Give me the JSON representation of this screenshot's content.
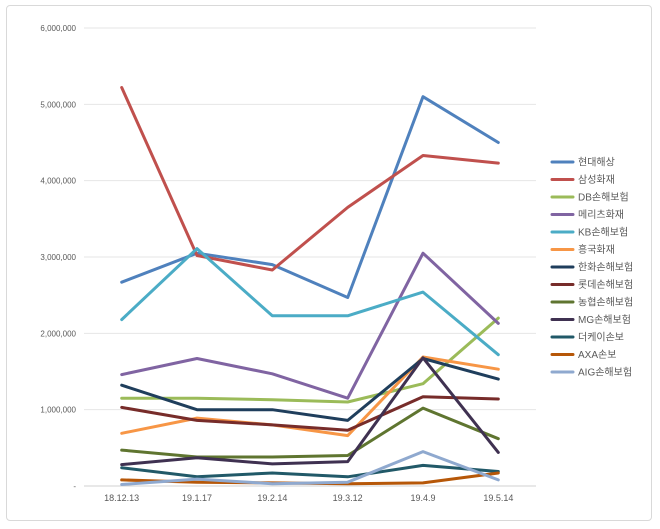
{
  "chart_data": {
    "type": "line",
    "title": "",
    "xlabel": "",
    "ylabel": "",
    "ylim": [
      0,
      6000000
    ],
    "y_ticks": [
      0,
      1000000,
      2000000,
      3000000,
      4000000,
      5000000,
      6000000
    ],
    "y_tick_labels": [
      "-",
      "1,000,000",
      "2,000,000",
      "3,000,000",
      "4,000,000",
      "5,000,000",
      "6,000,000"
    ],
    "grid": true,
    "legend_position": "right",
    "categories": [
      "18.12.13",
      "19.1.17",
      "19.2.14",
      "19.3.12",
      "19.4.9",
      "19.5.14"
    ],
    "series": [
      {
        "name": "현대해상",
        "color": "#4f81bd",
        "values": [
          2670000,
          3050000,
          2900000,
          2470000,
          5100000,
          4500000
        ]
      },
      {
        "name": "삼성화재",
        "color": "#c0504d",
        "values": [
          5220000,
          3020000,
          2830000,
          3650000,
          4330000,
          4230000
        ]
      },
      {
        "name": "DB손해보험",
        "color": "#9bbb59",
        "values": [
          1150000,
          1150000,
          1130000,
          1100000,
          1340000,
          2200000
        ]
      },
      {
        "name": "메리츠화재",
        "color": "#8064a2",
        "values": [
          1460000,
          1670000,
          1470000,
          1150000,
          3050000,
          2130000
        ]
      },
      {
        "name": "KB손해보험",
        "color": "#4bacc6",
        "values": [
          2180000,
          3110000,
          2230000,
          2230000,
          2540000,
          1720000
        ]
      },
      {
        "name": "흥국화재",
        "color": "#f79646",
        "values": [
          690000,
          890000,
          800000,
          660000,
          1690000,
          1530000
        ]
      },
      {
        "name": "한화손해보험",
        "color": "#1f3e5c",
        "values": [
          1320000,
          1000000,
          1000000,
          860000,
          1670000,
          1400000
        ]
      },
      {
        "name": "롯데손해보험",
        "color": "#772c2a",
        "values": [
          1030000,
          860000,
          800000,
          730000,
          1170000,
          1140000
        ]
      },
      {
        "name": "농협손해보험",
        "color": "#5f7530",
        "values": [
          470000,
          380000,
          380000,
          400000,
          1020000,
          620000
        ]
      },
      {
        "name": "MG손해보험",
        "color": "#3f3151",
        "values": [
          280000,
          370000,
          290000,
          320000,
          1680000,
          440000
        ]
      },
      {
        "name": "더케이손보",
        "color": "#215968",
        "values": [
          240000,
          120000,
          170000,
          120000,
          270000,
          190000
        ]
      },
      {
        "name": "AXA손보",
        "color": "#b65708",
        "values": [
          80000,
          50000,
          40000,
          30000,
          40000,
          170000
        ]
      },
      {
        "name": "AIG손해보험",
        "color": "#8fa9cf",
        "values": [
          20000,
          90000,
          30000,
          50000,
          450000,
          80000
        ]
      }
    ]
  }
}
